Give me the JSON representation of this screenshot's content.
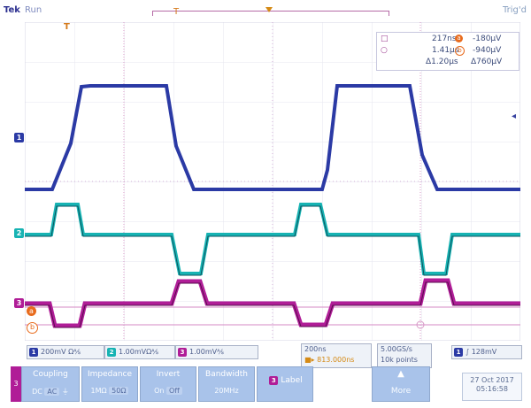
{
  "header": {
    "brand": "Tek",
    "run": "Run",
    "trig": "Trig'd",
    "record_marker": "T"
  },
  "colors": {
    "ch1": "#2b3aa5",
    "ch2": "#17b3b3",
    "ch3": "#b01d97",
    "cursor": "#e86b1d",
    "grid": "#d7d7e5",
    "grid_center": "#cfaed4"
  },
  "labels": {
    "ch1": "1",
    "ch2": "2",
    "ch3": "3",
    "cursor_a": "a",
    "cursor_b": "b"
  },
  "readout": {
    "row1_left": "217ns",
    "row1_right": "-180μV",
    "row2_left": "1.41μs",
    "row2_right": "-940μV",
    "row3_left": "Δ1.20μs",
    "row3_right": "Δ760μV"
  },
  "status": {
    "ch1_scale": "200mV Ω⅍",
    "ch2_scale": "1.00mVΩ⅍",
    "ch3_scale": "1.00mV⅍",
    "time_scale": "200ns",
    "time_offset": "813.000ns",
    "sample_rate": "5.00GS/s",
    "record_len": "10k points",
    "trigger_ch": "1",
    "trigger_level": "128mV"
  },
  "menu": {
    "channel": "3",
    "coupling": {
      "title": "Coupling",
      "opt1": "DC",
      "opt2": "AC",
      "opt3": "⏚"
    },
    "impedance": {
      "title": "Impedance",
      "opt1": "1MΩ",
      "opt2": "50Ω"
    },
    "invert": {
      "title": "Invert",
      "opt1": "On",
      "opt2": "Off"
    },
    "bandwidth": {
      "title": "Bandwidth",
      "value": "20MHz"
    },
    "label": {
      "chip": "3",
      "text": "Label"
    },
    "more": "More",
    "date": "27 Oct 2017",
    "time": "05:16:58"
  }
}
